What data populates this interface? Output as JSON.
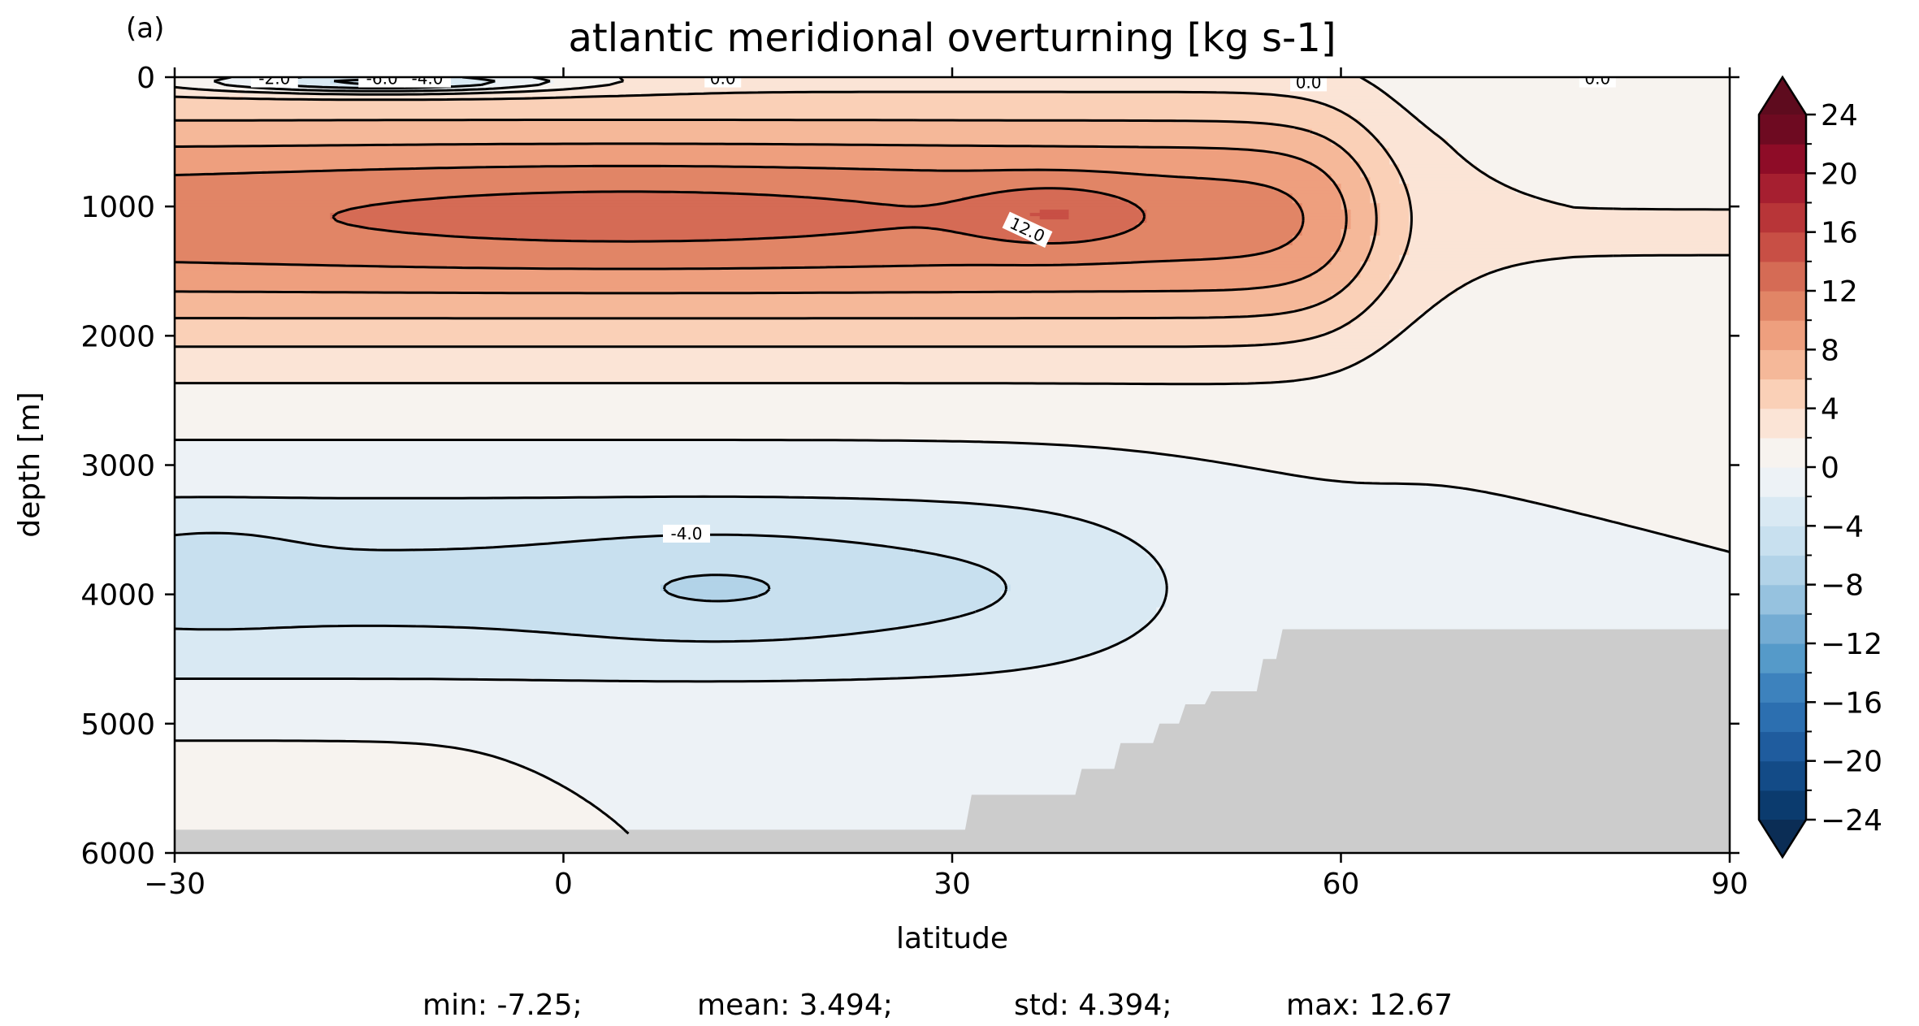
{
  "chart_data": {
    "type": "heatmap",
    "panel_label": "(a)",
    "title": "atlantic meridional overturning [kg s-1]",
    "xlabel": "latitude",
    "ylabel": "depth [m]",
    "xlim": [
      -30,
      90
    ],
    "ylim": [
      6000,
      0
    ],
    "x_ticks": [
      -30,
      0,
      30,
      60,
      90
    ],
    "x_tick_labels": [
      "−30",
      "0",
      "30",
      "60",
      "90"
    ],
    "y_ticks": [
      0,
      1000,
      2000,
      3000,
      4000,
      5000,
      6000
    ],
    "y_tick_labels": [
      "0",
      "1000",
      "2000",
      "3000",
      "4000",
      "5000",
      "6000"
    ],
    "colorbar": {
      "colormap": "RdBu_r",
      "extend": "both",
      "levels": [
        -24,
        -22,
        -20,
        -18,
        -16,
        -14,
        -12,
        -10,
        -8,
        -6,
        -4,
        -2,
        0,
        2,
        4,
        6,
        8,
        10,
        12,
        14,
        16,
        18,
        20,
        22,
        24
      ],
      "tick_values": [
        -24,
        -20,
        -16,
        -12,
        -8,
        -4,
        0,
        4,
        8,
        12,
        16,
        20,
        24
      ],
      "tick_labels": [
        "−24",
        "−20",
        "−16",
        "−12",
        "−8",
        "−4",
        "0",
        "4",
        "8",
        "12",
        "16",
        "20",
        "24"
      ],
      "colors": [
        "#0b3b6e",
        "#134b87",
        "#1f5c9e",
        "#2c6fb0",
        "#3d82bd",
        "#559ac9",
        "#74acd3",
        "#96c2df",
        "#b2d3e8",
        "#c8e0ef",
        "#d9e9f3",
        "#edf2f6",
        "#f7f3ef",
        "#fbe4d6",
        "#fad0b7",
        "#f5b899",
        "#ee9f7e",
        "#e18566",
        "#d56b55",
        "#c84f45",
        "#b83538",
        "#a61f30",
        "#8e0c27",
        "#6e0a21"
      ],
      "under_color": "#0b2d55",
      "over_color": "#5e0b1e"
    },
    "land_color": "#cccccc",
    "contour_labels": [
      {
        "text": "-2.0",
        "lat": -22.3,
        "depth": 10
      },
      {
        "text": "-6.0",
        "lat": -14,
        "depth": 10
      },
      {
        "text": "-4.0",
        "lat": -10.5,
        "depth": 10
      },
      {
        "text": "0.0",
        "lat": 12.3,
        "depth": 10
      },
      {
        "text": "0.0",
        "lat": 57.5,
        "depth": 40
      },
      {
        "text": "0.0",
        "lat": 79.8,
        "depth": 10
      },
      {
        "text": "12.0",
        "lat": 35.8,
        "depth": 1180,
        "angle": 25
      },
      {
        "text": "-4.0",
        "lat": 9.5,
        "depth": 3530
      }
    ]
  },
  "stats": {
    "min": "min: -7.25;",
    "mean": "mean: 3.494;",
    "std": "std: 4.394;",
    "max": "max: 12.67"
  }
}
